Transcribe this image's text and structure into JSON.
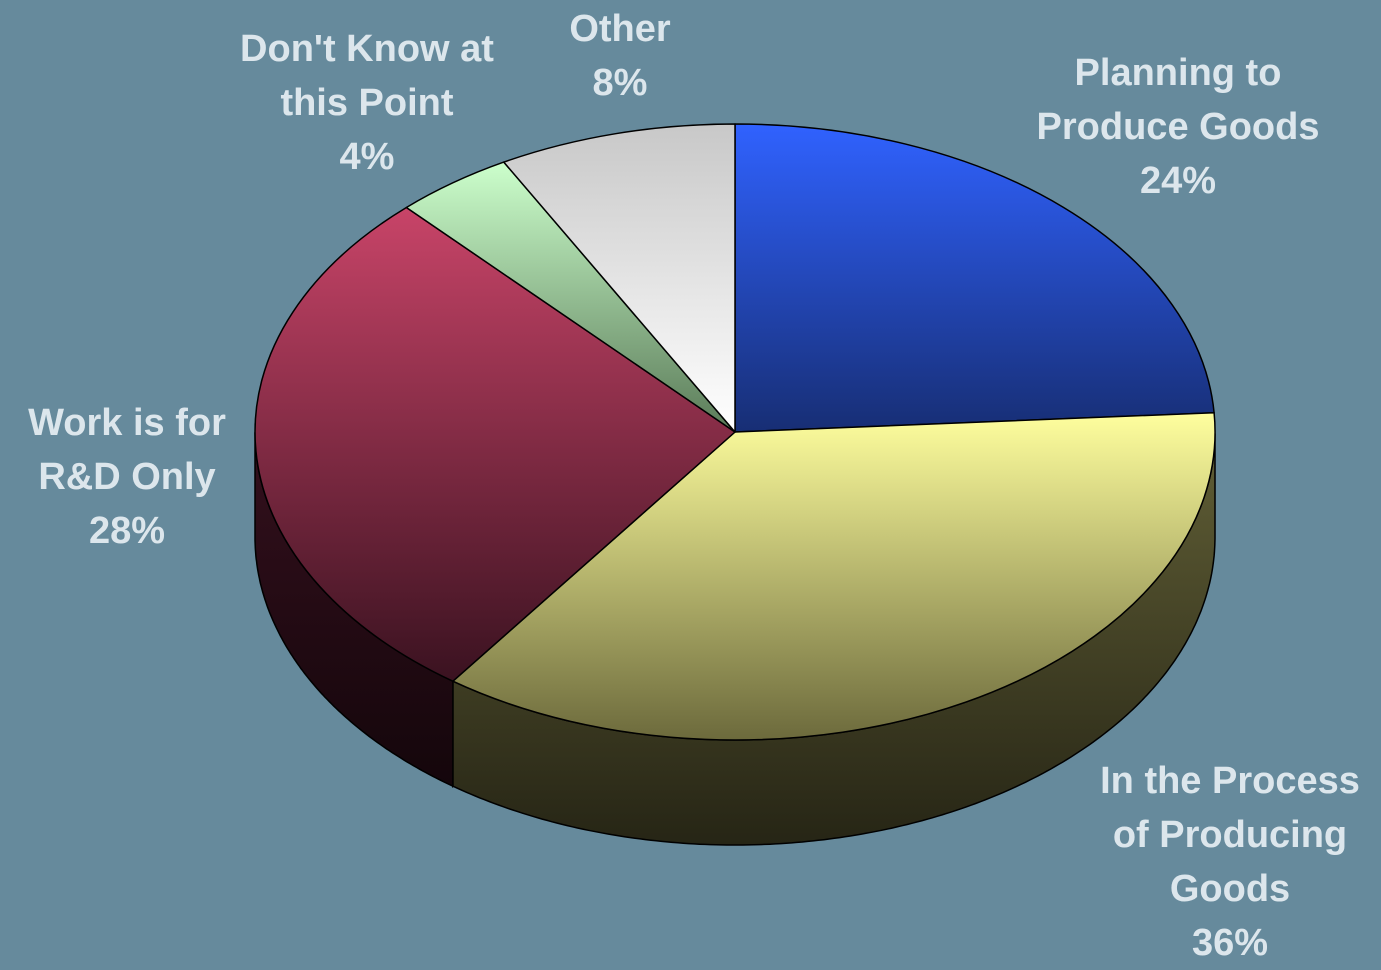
{
  "chart_data": {
    "type": "pie",
    "title": "",
    "style": "3d",
    "start_angle_deg": 90,
    "direction": "clockwise",
    "background": "#668A9C",
    "slices": [
      {
        "label": "Planning to Produce Goods",
        "label_lines": [
          "Planning to",
          "Produce Goods"
        ],
        "value": 24,
        "value_label": "24%",
        "color_top": "#3062FF",
        "color_bottom": "#172E74"
      },
      {
        "label": "In the Process of Producing Goods",
        "label_lines": [
          "In the Process",
          "of Producing",
          "Goods"
        ],
        "value": 36,
        "value_label": "36%",
        "color_top": "#FFFF9E",
        "color_bottom": "#6C6A3C"
      },
      {
        "label": "Work is for R&D Only",
        "label_lines": [
          "Work is for",
          "R&D Only"
        ],
        "value": 28,
        "value_label": "28%",
        "color_top": "#C84468",
        "color_bottom": "#3A1220"
      },
      {
        "label": "Don't Know at this Point",
        "label_lines": [
          "Don't Know at",
          "this Point"
        ],
        "value": 4,
        "value_label": "4%",
        "color_top": "#CCFFCC",
        "color_bottom": "#5A7A58"
      },
      {
        "label": "Other",
        "label_lines": [
          "Other"
        ],
        "value": 8,
        "value_label": "8%",
        "color_top": "#C8C8C8",
        "color_bottom": "#FFFFFF"
      }
    ]
  }
}
